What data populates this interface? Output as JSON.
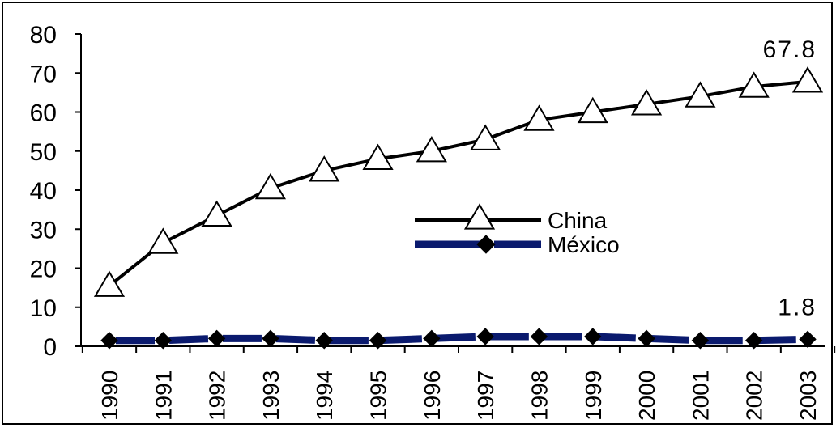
{
  "chart_data": {
    "type": "line",
    "title": "",
    "xlabel": "",
    "ylabel": "",
    "ylim": [
      0,
      80
    ],
    "yticks": [
      0,
      10,
      20,
      30,
      40,
      50,
      60,
      70,
      80
    ],
    "categories": [
      "1990",
      "1991",
      "1992",
      "1993",
      "1994",
      "1995",
      "1996",
      "1997",
      "1998",
      "1999",
      "2000",
      "2001",
      "2002",
      "2003"
    ],
    "series": [
      {
        "name": "China",
        "color": "#000000",
        "marker": "triangle-open",
        "line_style": "solid",
        "values": [
          15.5,
          26.5,
          33.5,
          40.5,
          45,
          48,
          50,
          53,
          58,
          60,
          62,
          64,
          66.5,
          67.8
        ]
      },
      {
        "name": "México",
        "color": "#0a1a6e",
        "marker": "diamond-filled",
        "line_style": "dashed",
        "values": [
          1.5,
          1.5,
          2,
          2,
          1.5,
          1.5,
          2,
          2.5,
          2.5,
          2.5,
          2,
          1.5,
          1.5,
          1.8
        ]
      }
    ],
    "annotations": [
      {
        "series": "China",
        "text": "67.8"
      },
      {
        "series": "México",
        "text": "1.8"
      }
    ],
    "legend": {
      "placement": "center-right"
    },
    "grid": false
  }
}
